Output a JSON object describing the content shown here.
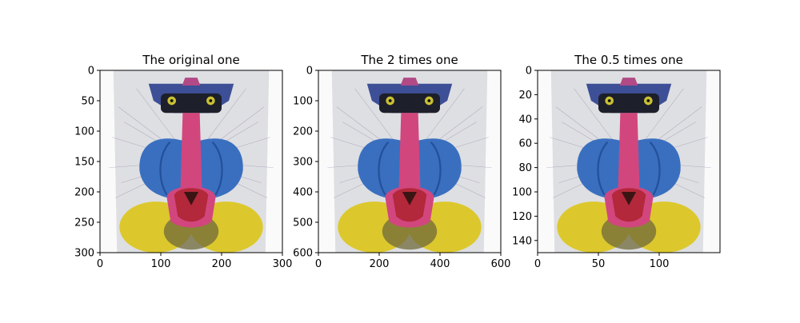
{
  "chart_data": [
    {
      "type": "image",
      "title": "The original one",
      "xlim": [
        0,
        300
      ],
      "ylim": [
        300,
        0
      ],
      "xticks": [
        0,
        100,
        200,
        300
      ],
      "yticks": [
        0,
        50,
        100,
        150,
        200,
        250,
        300
      ],
      "xtick_labels": [
        "0",
        "100",
        "200",
        "300"
      ],
      "ytick_labels": [
        "0",
        "50",
        "100",
        "150",
        "200",
        "250",
        "300"
      ]
    },
    {
      "type": "image",
      "title": "The 2 times one",
      "xlim": [
        0,
        600
      ],
      "ylim": [
        600,
        0
      ],
      "xticks": [
        0,
        200,
        400,
        600
      ],
      "yticks": [
        0,
        100,
        200,
        300,
        400,
        500,
        600
      ],
      "xtick_labels": [
        "0",
        "200",
        "400",
        "600"
      ],
      "ytick_labels": [
        "0",
        "100",
        "200",
        "300",
        "400",
        "500",
        "600"
      ]
    },
    {
      "type": "image",
      "title": "The 0.5 times one",
      "xlim": [
        0,
        150
      ],
      "ylim": [
        150,
        0
      ],
      "xticks": [
        0,
        50,
        100
      ],
      "yticks": [
        0,
        20,
        40,
        60,
        80,
        100,
        120,
        140
      ],
      "xtick_labels": [
        "0",
        "50",
        "100"
      ],
      "ytick_labels": [
        "0",
        "20",
        "40",
        "60",
        "80",
        "100",
        "120",
        "140"
      ]
    }
  ],
  "image_subject": "mandrill-face",
  "colors": {
    "background": "#dedfe2",
    "blue": "#3a6fc0",
    "blue_dark": "#24519a",
    "nose": "#d2467e",
    "mouth": "#b3283a",
    "yellow": "#dcc82c",
    "eye": "#c9c034",
    "forehead": "#3d4f96",
    "dark": "#1d1f2a"
  }
}
